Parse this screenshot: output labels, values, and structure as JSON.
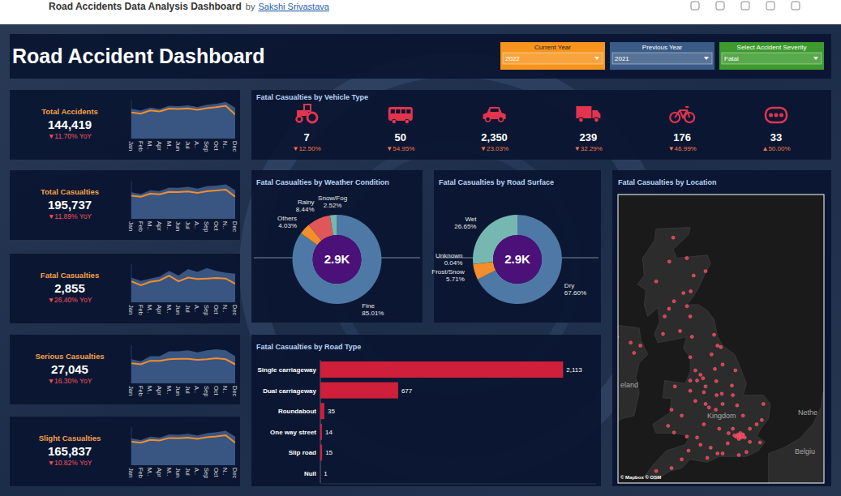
{
  "header": {
    "title": "Road Accidents Data Analysis Dashboard",
    "by": "by",
    "author": "Sakshi Srivastava"
  },
  "dashboard_title": "Road Accident Dashboard",
  "filters": [
    {
      "label": "Current Year",
      "value": "2022",
      "color": "#f7941d"
    },
    {
      "label": "Previous Year",
      "value": "2021",
      "color": "#3b5b87"
    },
    {
      "label": "Select Accident Severity",
      "value": "Fatal",
      "color": "#3d9a2e"
    }
  ],
  "kpis": [
    {
      "label": "Total Accidents",
      "value": "144,419",
      "change": "▼11.70% YoY"
    },
    {
      "label": "Total Casualties",
      "value": "195,737",
      "change": "▼11.89% YoY"
    },
    {
      "label": "Fatal Casualties",
      "value": "2,855",
      "change": "▼26.40% YoY"
    },
    {
      "label": "Serious Casualties",
      "value": "27,045",
      "change": "▼16.30% YoY"
    },
    {
      "label": "Slight Casualties",
      "value": "165,837",
      "change": "▼10.82% YoY"
    }
  ],
  "vehicle_types": {
    "title": "Fatal Casualties by Vehicle Type",
    "items": [
      {
        "value": "7",
        "change": "▼12.50%"
      },
      {
        "value": "50",
        "change": "▼54.95%"
      },
      {
        "value": "2,350",
        "change": "▼23.03%"
      },
      {
        "value": "239",
        "change": "▼32.29%"
      },
      {
        "value": "176",
        "change": "▼46.99%"
      },
      {
        "value": "33",
        "change": "▲50.00%"
      }
    ]
  },
  "chart_data": [
    {
      "type": "line",
      "categories": [
        "Jan",
        "Feb",
        "M..",
        "Apr",
        "M..",
        "Jun",
        "Jul",
        "A..",
        "Sep",
        "Oct",
        "N..",
        "Dec"
      ],
      "series": [
        {
          "type": "area",
          "color": "#3e5c8a",
          "values": [
            12500,
            11800,
            13000,
            12400,
            13800,
            13600,
            14000,
            13300,
            14200,
            14600,
            15400,
            12900
          ]
        },
        {
          "type": "line",
          "color": "#f28e2b",
          "values": [
            11000,
            10500,
            11800,
            11400,
            12600,
            12400,
            12700,
            12100,
            12800,
            13200,
            13800,
            10100
          ]
        }
      ],
      "ylim": [
        0,
        16000
      ],
      "tick_labels": "x"
    },
    {
      "type": "line",
      "categories": [
        "Jan",
        "Feb",
        "M..",
        "Apr",
        "M..",
        "Jun",
        "Jul",
        "A..",
        "Sep",
        "Oct",
        "N..",
        "Dec"
      ],
      "series": [
        {
          "type": "area",
          "color": "#3e5c8a",
          "values": [
            16700,
            15600,
            18000,
            17500,
            19700,
            19500,
            20200,
            19000,
            20500,
            21000,
            21700,
            18000
          ]
        },
        {
          "type": "line",
          "color": "#f28e2b",
          "values": [
            14600,
            13900,
            15800,
            15500,
            17000,
            16800,
            17200,
            16400,
            17400,
            17900,
            18400,
            14000
          ]
        }
      ],
      "ylim": [
        0,
        24000
      ],
      "tick_labels": "x"
    },
    {
      "type": "line",
      "categories": [
        "Jan",
        "Feb",
        "M..",
        "Apr",
        "M..",
        "Jun",
        "Jul",
        "A..",
        "Sep",
        "Oct",
        "N..",
        "Dec"
      ],
      "series": [
        {
          "type": "area",
          "color": "#3e5c8a",
          "values": [
            260,
            225,
            250,
            270,
            330,
            280,
            350,
            320,
            360,
            330,
            310,
            300
          ]
        },
        {
          "type": "line",
          "color": "#f28e2b",
          "values": [
            220,
            180,
            215,
            230,
            280,
            220,
            260,
            245,
            250,
            255,
            250,
            195
          ]
        }
      ],
      "ylim": [
        0,
        400
      ],
      "tick_labels": "x"
    },
    {
      "type": "line",
      "categories": [
        "Jan",
        "Feb",
        "M..",
        "Apr",
        "M..",
        "Jun",
        "Jul",
        "A..",
        "Sep",
        "Oct",
        "N..",
        "Dec"
      ],
      "series": [
        {
          "type": "area",
          "color": "#3e5c8a",
          "values": [
            2400,
            2200,
            2700,
            2700,
            3200,
            3200,
            3300,
            3100,
            3300,
            3400,
            3300,
            2700
          ]
        },
        {
          "type": "line",
          "color": "#f28e2b",
          "values": [
            2000,
            1900,
            2250,
            2250,
            2400,
            2450,
            2450,
            2350,
            2400,
            2500,
            2400,
            1900
          ]
        }
      ],
      "ylim": [
        0,
        3800
      ],
      "tick_labels": "x"
    },
    {
      "type": "line",
      "categories": [
        "Jan",
        "Feb",
        "M..",
        "Apr",
        "M..",
        "Jun",
        "Jul",
        "A..",
        "Sep",
        "Oct",
        "N..",
        "Dec"
      ],
      "series": [
        {
          "type": "area",
          "color": "#3e5c8a",
          "values": [
            14000,
            13200,
            15000,
            14500,
            16200,
            16000,
            16500,
            15600,
            16800,
            17300,
            18100,
            15000
          ]
        },
        {
          "type": "line",
          "color": "#f28e2b",
          "values": [
            12300,
            11800,
            13300,
            13000,
            14300,
            14100,
            14500,
            13800,
            14700,
            15100,
            15700,
            11800
          ]
        }
      ],
      "ylim": [
        0,
        20000
      ],
      "tick_labels": "x"
    },
    {
      "type": "pie",
      "title": "Fatal Casualties by Weather Condition",
      "center_label": "2.9K",
      "categories": [
        "Fine",
        "Others",
        "Rainy",
        "Snow/Fog"
      ],
      "values": [
        85.01,
        4.03,
        8.44,
        2.52
      ],
      "value_labels": [
        "85.01%",
        "4.03%",
        "8.44%",
        "2.52%"
      ],
      "colors": [
        "#4e79a7",
        "#f28e2b",
        "#e15759",
        "#76b7b2"
      ],
      "data_labels": true
    },
    {
      "type": "pie",
      "title": "Fatal Casualties by Road Surface",
      "center_label": "2.9K",
      "categories": [
        "Dry",
        "Frost/Snow",
        "Unknown",
        "Wet"
      ],
      "values": [
        67.6,
        5.71,
        0.04,
        26.65
      ],
      "value_labels": [
        "67.60%",
        "5.71%",
        "0.04%",
        "26.65%"
      ],
      "colors": [
        "#4e79a7",
        "#f28e2b",
        "#e15759",
        "#76b7b2"
      ],
      "data_labels": true
    },
    {
      "type": "bar",
      "title": "Fatal Casualties by Road Type",
      "orientation": "horizontal",
      "categories": [
        "Single carriageway",
        "Dual carriageway",
        "Roundabout",
        "One way street",
        "Slip road",
        "Null"
      ],
      "values": [
        2113,
        677,
        35,
        14,
        15,
        1
      ],
      "value_labels": [
        "2,113",
        "677",
        "35",
        "14",
        "15",
        "1"
      ],
      "color": "#cf1f3b",
      "xlim": [
        0,
        2400
      ],
      "data_labels": true,
      "tick_labels": "y"
    }
  ],
  "map": {
    "title": "Fatal Casualties by Location",
    "labels": [
      "eland",
      "Kingdom",
      "Nethe",
      "Belgiu"
    ],
    "credit": "© Mapbox © OSM",
    "points": [
      [
        -0.1,
        51.5
      ],
      [
        -0.2,
        51.55
      ],
      [
        0.0,
        51.45
      ],
      [
        -0.3,
        51.48
      ],
      [
        0.1,
        51.55
      ],
      [
        -0.05,
        51.6
      ],
      [
        -0.4,
        51.52
      ],
      [
        0.2,
        51.45
      ],
      [
        -0.15,
        51.4
      ],
      [
        0.05,
        51.52
      ],
      [
        0.5,
        51.3
      ],
      [
        1.1,
        51.28
      ],
      [
        -0.8,
        51.25
      ],
      [
        -1.1,
        50.9
      ],
      [
        -1.4,
        50.9
      ],
      [
        -0.15,
        50.85
      ],
      [
        0.3,
        50.95
      ],
      [
        -0.5,
        51.75
      ],
      [
        -0.75,
        51.6
      ],
      [
        0.5,
        51.75
      ],
      [
        0.9,
        51.9
      ],
      [
        1.2,
        52.05
      ],
      [
        0.1,
        52.2
      ],
      [
        -0.25,
        52.55
      ],
      [
        1.3,
        52.6
      ],
      [
        -2.6,
        51.45
      ],
      [
        -2.4,
        51.2
      ],
      [
        -3.5,
        50.7
      ],
      [
        -4.1,
        50.4
      ],
      [
        -5.0,
        50.3
      ],
      [
        -3.1,
        51.0
      ],
      [
        -2.0,
        50.75
      ],
      [
        -1.8,
        51.1
      ],
      [
        -2.2,
        51.9
      ],
      [
        -1.3,
        51.75
      ],
      [
        -1.9,
        52.48
      ],
      [
        -1.5,
        52.4
      ],
      [
        -1.15,
        52.95
      ],
      [
        -1.45,
        52.9
      ],
      [
        -2.1,
        52.6
      ],
      [
        -2.2,
        53.0
      ],
      [
        -0.5,
        52.9
      ],
      [
        -1.1,
        52.6
      ],
      [
        -0.55,
        53.23
      ],
      [
        -2.7,
        52.7
      ],
      [
        -2.25,
        53.48
      ],
      [
        -2.6,
        53.4
      ],
      [
        -3.0,
        53.4
      ],
      [
        -2.7,
        53.75
      ],
      [
        -3.0,
        54.2
      ],
      [
        -2.9,
        54.9
      ],
      [
        -2.1,
        53.2
      ],
      [
        -2.4,
        53.6
      ],
      [
        -1.55,
        53.8
      ],
      [
        -1.1,
        53.95
      ],
      [
        -1.47,
        53.38
      ],
      [
        -0.35,
        53.75
      ],
      [
        -1.6,
        54.97
      ],
      [
        -1.4,
        54.6
      ],
      [
        -1.2,
        54.55
      ],
      [
        -1.75,
        54.3
      ],
      [
        -3.2,
        51.48
      ],
      [
        -3.95,
        51.62
      ],
      [
        -4.3,
        51.85
      ],
      [
        -3.5,
        52.2
      ],
      [
        -4.1,
        52.4
      ],
      [
        -3.9,
        53.2
      ],
      [
        -3.0,
        53.05
      ],
      [
        -4.25,
        55.86
      ],
      [
        -3.19,
        55.95
      ],
      [
        -4.5,
        55.6
      ],
      [
        -3.0,
        55.6
      ],
      [
        -3.95,
        56.12
      ],
      [
        -2.97,
        56.46
      ],
      [
        -3.4,
        56.4
      ],
      [
        -2.1,
        57.15
      ],
      [
        -4.23,
        57.48
      ],
      [
        -3.2,
        57.6
      ],
      [
        -5.0,
        56.8
      ],
      [
        -3.6,
        55.1
      ],
      [
        -4.6,
        55.0
      ],
      [
        -2.8,
        57.0
      ],
      [
        -4.0,
        58.3
      ],
      [
        -5.93,
        54.6
      ],
      [
        -6.5,
        54.7
      ],
      [
        -7.3,
        54.9
      ],
      [
        -6.3,
        54.35
      ]
    ]
  }
}
